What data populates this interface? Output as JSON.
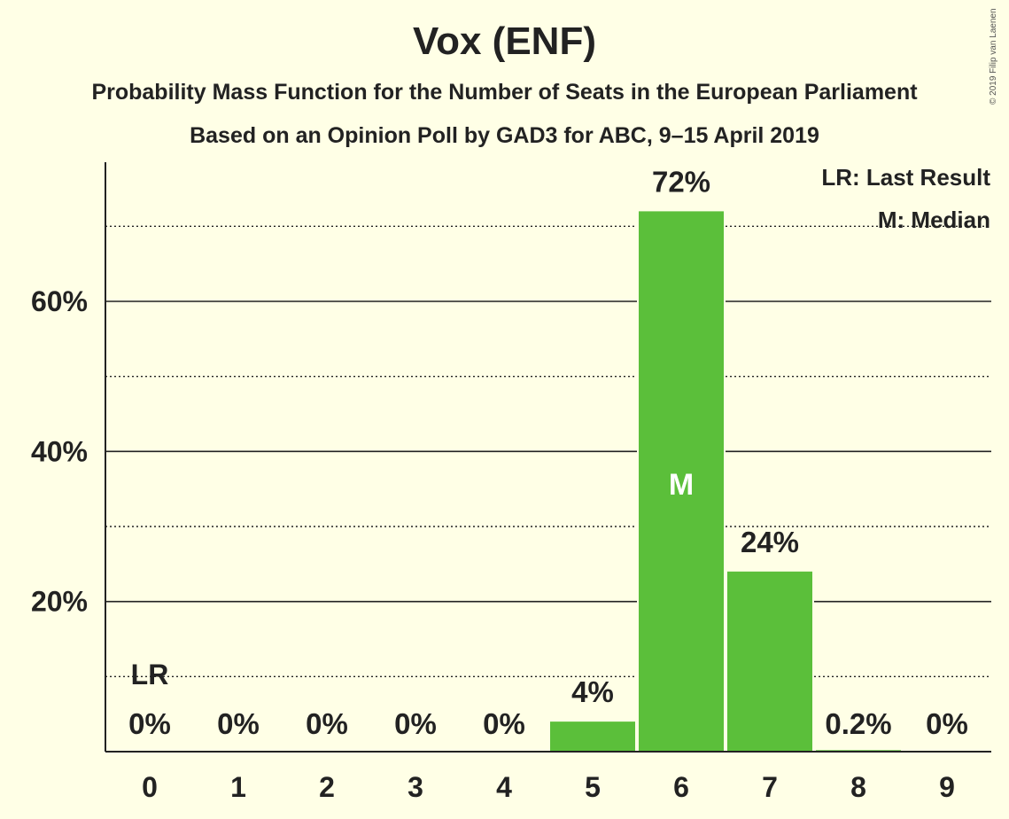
{
  "title": "Vox (ENF)",
  "subtitle": "Probability Mass Function for the Number of Seats in the European Parliament",
  "subtitle2": "Based on an Opinion Poll by GAD3 for ABC, 9–15 April 2019",
  "copyright": "© 2019 Filip van Laenen",
  "legend": {
    "last_result": "LR: Last Result",
    "median": "M: Median"
  },
  "colors": {
    "bar": "#5bbf3a",
    "background": "#ffffe6",
    "text": "#222222"
  },
  "chart_data": {
    "type": "bar",
    "categories": [
      "0",
      "1",
      "2",
      "3",
      "4",
      "5",
      "6",
      "7",
      "8",
      "9"
    ],
    "values": [
      0,
      0,
      0,
      0,
      0,
      4,
      72,
      24,
      0.2,
      0
    ],
    "value_labels": [
      "0%",
      "0%",
      "0%",
      "0%",
      "0%",
      "4%",
      "72%",
      "24%",
      "0.2%",
      "0%"
    ],
    "ylim": [
      0,
      78
    ],
    "yticks": [
      20,
      40,
      60
    ],
    "ytick_labels": [
      "20%",
      "40%",
      "60%"
    ],
    "minor_gridlines": [
      10,
      30,
      50,
      70
    ],
    "last_result_category": "0",
    "last_result_label": "LR",
    "median_category": "6",
    "median_label": "M",
    "legend_position": "top-right"
  }
}
